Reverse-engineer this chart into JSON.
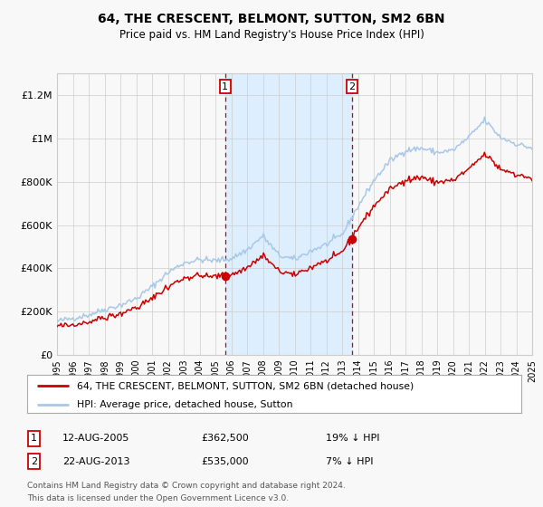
{
  "title": "64, THE CRESCENT, BELMONT, SUTTON, SM2 6BN",
  "subtitle": "Price paid vs. HM Land Registry's House Price Index (HPI)",
  "legend_line1": "64, THE CRESCENT, BELMONT, SUTTON, SM2 6BN (detached house)",
  "legend_line2": "HPI: Average price, detached house, Sutton",
  "annotation1_label": "1",
  "annotation1_date": "12-AUG-2005",
  "annotation1_price": "£362,500",
  "annotation1_hpi": "19% ↓ HPI",
  "annotation2_label": "2",
  "annotation2_date": "22-AUG-2013",
  "annotation2_price": "£535,000",
  "annotation2_hpi": "7% ↓ HPI",
  "footnote_line1": "Contains HM Land Registry data © Crown copyright and database right 2024.",
  "footnote_line2": "This data is licensed under the Open Government Licence v3.0.",
  "hpi_color": "#a8c8e8",
  "price_color": "#cc0000",
  "marker_color": "#cc0000",
  "shading_color": "#ddeeff",
  "background_color": "#f8f8f8",
  "grid_color": "#cccccc",
  "vline_color": "#cc0000",
  "ylim": [
    0,
    1300000
  ],
  "yticks": [
    0,
    200000,
    400000,
    600000,
    800000,
    1000000,
    1200000
  ],
  "ytick_labels": [
    "£0",
    "£200K",
    "£400K",
    "£600K",
    "£800K",
    "£1M",
    "£1.2M"
  ],
  "sale1_year": 2005.617,
  "sale1_price": 362500,
  "sale2_year": 2013.633,
  "sale2_price": 535000,
  "shade_start": 2005.617,
  "shade_end": 2013.633,
  "xmin": 1995,
  "xmax": 2025
}
